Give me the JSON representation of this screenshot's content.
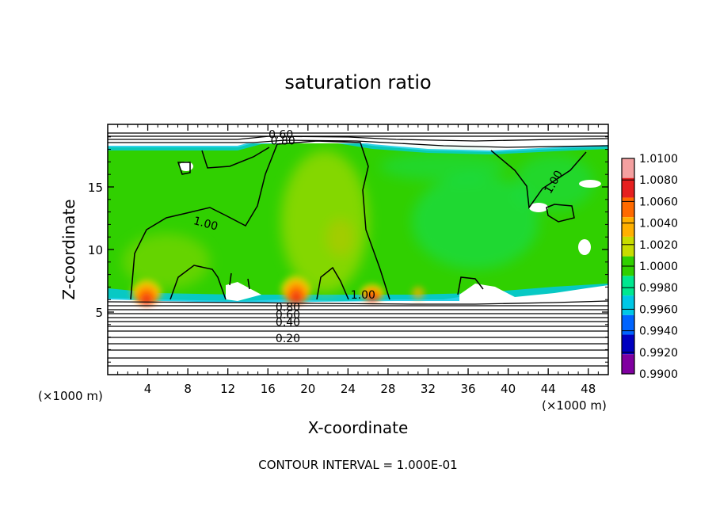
{
  "chart_data": {
    "type": "heatmap",
    "title": "saturation ratio",
    "xlabel": "X-coordinate",
    "ylabel": "Z-coordinate",
    "x_unit": "(×1000 m)",
    "z_unit": "(×1000 m)",
    "footer": "CONTOUR INTERVAL = 1.000E-01",
    "xlim": [
      0,
      50
    ],
    "ylim": [
      0,
      20
    ],
    "x_ticks": [
      4,
      8,
      12,
      16,
      20,
      24,
      28,
      32,
      36,
      40,
      44,
      48
    ],
    "y_ticks": [
      5,
      10,
      15
    ],
    "colorbar": {
      "levels": [
        "1.0100",
        "1.0080",
        "1.0060",
        "1.0040",
        "1.0020",
        "1.0000",
        "0.9980",
        "0.9960",
        "0.9940",
        "0.9920",
        "0.9900"
      ],
      "colors": [
        "#f4a0a0",
        "#e62020",
        "#ff6a00",
        "#ffb000",
        "#c8dc00",
        "#30d000",
        "#00e890",
        "#00c8e6",
        "#0064ff",
        "#0000c0",
        "#8000a0"
      ]
    },
    "contour_labels": [
      {
        "text": "0.60",
        "x": 17.3,
        "y": 19.2
      },
      {
        "text": "0.80",
        "x": 17.5,
        "y": 18.7
      },
      {
        "text": "1.00",
        "x": 9.8,
        "y": 12.1
      },
      {
        "text": "1.00",
        "x": 25.5,
        "y": 6.4
      },
      {
        "text": "1.00",
        "x": 44.5,
        "y": 15.4
      },
      {
        "text": "0.80",
        "x": 18.0,
        "y": 5.4
      },
      {
        "text": "0.60",
        "x": 18.0,
        "y": 4.8
      },
      {
        "text": "0.40",
        "x": 18.0,
        "y": 4.2
      },
      {
        "text": "0.20",
        "x": 18.0,
        "y": 2.9
      }
    ],
    "cloud_base_z": 6.0,
    "cloud_top_z": 18.2,
    "maxima": [
      {
        "x": 4.0,
        "z": 6.2,
        "value": 1.008
      },
      {
        "x": 18.5,
        "z": 6.3,
        "value": 1.008
      },
      {
        "x": 26.0,
        "z": 6.2,
        "value": 1.006
      },
      {
        "x": 23.5,
        "z": 11.0,
        "value": 1.002
      }
    ],
    "grid": false
  }
}
